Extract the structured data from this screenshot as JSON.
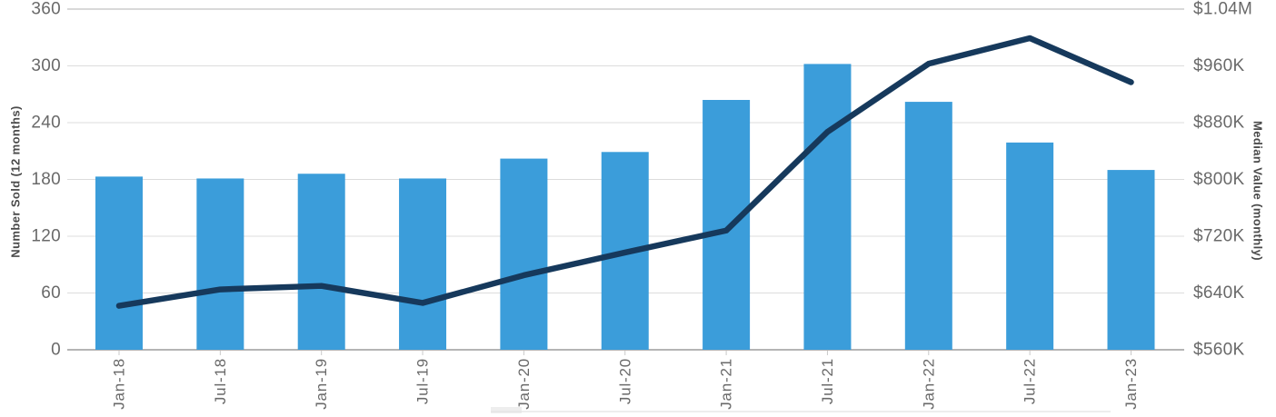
{
  "chart_data": {
    "type": "combo",
    "categories": [
      "Jan-18",
      "Jul-18",
      "Jan-19",
      "Jul-19",
      "Jan-20",
      "Jul-20",
      "Jan-21",
      "Jul-21",
      "Jan-22",
      "Jul-22",
      "Jan-23"
    ],
    "series": [
      {
        "name": "Number Sold (12 months)",
        "chart_type": "bar",
        "axis": "left",
        "color": "#3b9dda",
        "values": [
          183,
          181,
          186,
          181,
          202,
          209,
          264,
          302,
          262,
          219,
          190
        ]
      },
      {
        "name": "Median Value (monthly)",
        "chart_type": "line",
        "axis": "right",
        "color": "#16395c",
        "values_usd_thousands": [
          622,
          645,
          650,
          626,
          665,
          697,
          728,
          867,
          963,
          999,
          937
        ]
      }
    ],
    "left_axis": {
      "title": "Number Sold (12 months)",
      "ticks": [
        0,
        60,
        120,
        180,
        240,
        300,
        360
      ],
      "range": [
        0,
        360
      ]
    },
    "right_axis": {
      "title": "Median Value (monthly)",
      "tick_labels": [
        "$560K",
        "$640K",
        "$720K",
        "$800K",
        "$880K",
        "$960K",
        "$1.04M"
      ],
      "range_usd_thousands": [
        560,
        1040
      ]
    },
    "grid": true,
    "legend_position": "none (clipped at bottom edge)"
  },
  "colors": {
    "bar": "#3b9dda",
    "line": "#16395c",
    "gridline": "#dcdcdc",
    "gridline_top": "#b3b3b3",
    "baseline": "#9b9b9b",
    "tick_mark": "#c9c9c9",
    "tick_label": "#696969",
    "axis_title": "#4a4a4a"
  }
}
